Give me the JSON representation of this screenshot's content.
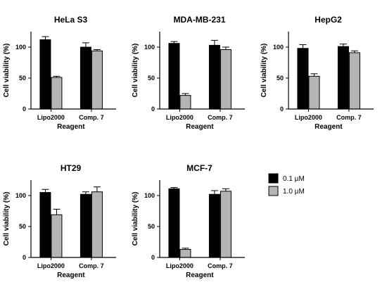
{
  "chart_data": [
    {
      "type": "bar",
      "title": "HeLa S3",
      "xlabel": "Reagent",
      "ylabel": "Cell viability (%)",
      "categories": [
        "Lipo2000",
        "Comp. 7"
      ],
      "yticks": [
        0,
        50,
        100
      ],
      "ylim": [
        0,
        125
      ],
      "series": [
        {
          "name": "0.1 µM",
          "values": [
            112,
            100
          ],
          "errors": [
            5,
            7
          ]
        },
        {
          "name": "1.0 µM",
          "values": [
            51,
            94
          ],
          "errors": [
            2,
            2
          ]
        }
      ]
    },
    {
      "type": "bar",
      "title": "MDA-MB-231",
      "xlabel": "Reagent",
      "ylabel": "Cell viability (%)",
      "categories": [
        "Lipo2000",
        "Comp. 7"
      ],
      "yticks": [
        0,
        50,
        100
      ],
      "ylim": [
        0,
        125
      ],
      "series": [
        {
          "name": "0.1 µM",
          "values": [
            106,
            103
          ],
          "errors": [
            3,
            8
          ]
        },
        {
          "name": "1.0 µM",
          "values": [
            22,
            96
          ],
          "errors": [
            3,
            4
          ]
        }
      ]
    },
    {
      "type": "bar",
      "title": "HepG2",
      "xlabel": "Reagent",
      "ylabel": "Cell viability (%)",
      "categories": [
        "Lipo2000",
        "Comp. 7"
      ],
      "yticks": [
        0,
        50,
        100
      ],
      "ylim": [
        0,
        125
      ],
      "series": [
        {
          "name": "0.1 µM",
          "values": [
            98,
            101
          ],
          "errors": [
            6,
            4
          ]
        },
        {
          "name": "1.0 µM",
          "values": [
            53,
            91
          ],
          "errors": [
            4,
            3
          ]
        }
      ]
    },
    {
      "type": "bar",
      "title": "HT29",
      "xlabel": "Reagent",
      "ylabel": "Cell viability (%)",
      "categories": [
        "Lipo2000",
        "Comp. 7"
      ],
      "yticks": [
        0,
        50,
        100
      ],
      "ylim": [
        0,
        125
      ],
      "series": [
        {
          "name": "0.1 µM",
          "values": [
            105,
            102
          ],
          "errors": [
            5,
            4
          ]
        },
        {
          "name": "1.0 µM",
          "values": [
            69,
            106
          ],
          "errors": [
            9,
            8
          ]
        }
      ]
    },
    {
      "type": "bar",
      "title": "MCF-7",
      "xlabel": "Reagent",
      "ylabel": "Cell viability (%)",
      "categories": [
        "Lipo2000",
        "Comp. 7"
      ],
      "yticks": [
        0,
        50,
        100
      ],
      "ylim": [
        0,
        125
      ],
      "series": [
        {
          "name": "0.1 µM",
          "values": [
            111,
            102
          ],
          "errors": [
            2,
            6
          ]
        },
        {
          "name": "1.0 µM",
          "values": [
            13,
            107
          ],
          "errors": [
            2,
            4
          ]
        }
      ]
    }
  ],
  "legend": {
    "placement": "right",
    "items": [
      {
        "label": "0.1 µM",
        "color": "#000000"
      },
      {
        "label": "1.0 µM",
        "color": "#b4b4b4"
      }
    ]
  },
  "colors": {
    "series_0": "#000000",
    "series_1": "#b4b4b4",
    "axis": "#000000"
  }
}
